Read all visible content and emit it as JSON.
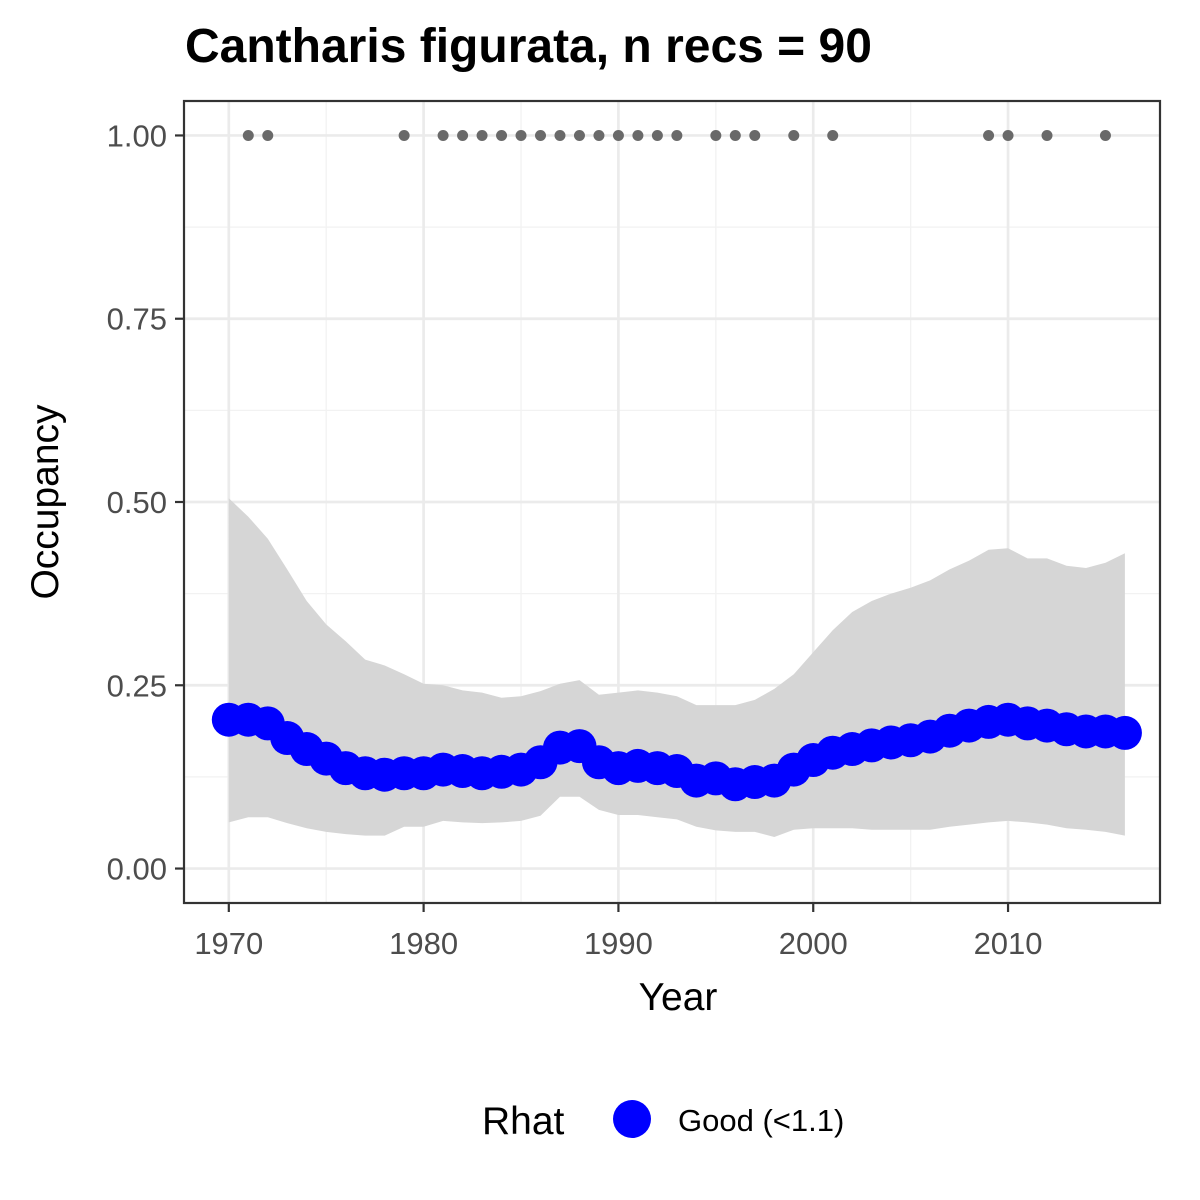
{
  "chart_data": {
    "type": "line",
    "title": "Cantharis figurata, n recs = 90",
    "xlabel": "Year",
    "ylabel": "Occupancy",
    "xlim": [
      1967.7,
      2017.8
    ],
    "ylim": [
      -0.047,
      1.047
    ],
    "x_ticks": [
      1970,
      1980,
      1990,
      2000,
      2010
    ],
    "x_tick_labels": [
      "1970",
      "1980",
      "1990",
      "2000",
      "2010"
    ],
    "y_ticks": [
      0,
      0.25,
      0.5,
      0.75,
      1
    ],
    "y_tick_labels": [
      "0.00",
      "0.25",
      "0.50",
      "0.75",
      "1.00"
    ],
    "grid": true,
    "legend": {
      "position": "bottom",
      "title": "Rhat",
      "entries": [
        {
          "label": "Good (<1.1)",
          "color": "#0000ff"
        }
      ]
    },
    "series": [
      {
        "name": "Good (<1.1)",
        "color": "#0000ff",
        "x": [
          1970,
          1971,
          1972,
          1973,
          1974,
          1975,
          1976,
          1977,
          1978,
          1979,
          1980,
          1981,
          1982,
          1983,
          1984,
          1985,
          1986,
          1987,
          1988,
          1989,
          1990,
          1991,
          1992,
          1993,
          1994,
          1995,
          1996,
          1997,
          1998,
          1999,
          2000,
          2001,
          2002,
          2003,
          2004,
          2005,
          2006,
          2007,
          2008,
          2009,
          2010,
          2011,
          2012,
          2013,
          2014,
          2015,
          2016
        ],
        "y": [
          0.203,
          0.203,
          0.198,
          0.178,
          0.163,
          0.15,
          0.137,
          0.13,
          0.128,
          0.13,
          0.13,
          0.135,
          0.133,
          0.13,
          0.132,
          0.135,
          0.145,
          0.165,
          0.167,
          0.145,
          0.137,
          0.14,
          0.137,
          0.133,
          0.12,
          0.123,
          0.115,
          0.118,
          0.12,
          0.135,
          0.148,
          0.158,
          0.163,
          0.168,
          0.172,
          0.175,
          0.18,
          0.188,
          0.195,
          0.2,
          0.203,
          0.198,
          0.195,
          0.19,
          0.187,
          0.187,
          0.185
        ]
      }
    ],
    "credible_interval": {
      "color": "#d6d6d6",
      "x": [
        1970,
        1971,
        1972,
        1973,
        1974,
        1975,
        1976,
        1977,
        1978,
        1979,
        1980,
        1981,
        1982,
        1983,
        1984,
        1985,
        1986,
        1987,
        1988,
        1989,
        1990,
        1991,
        1992,
        1993,
        1994,
        1995,
        1996,
        1997,
        1998,
        1999,
        2000,
        2001,
        2002,
        2003,
        2004,
        2005,
        2006,
        2007,
        2008,
        2009,
        2010,
        2011,
        2012,
        2013,
        2014,
        2015,
        2016
      ],
      "lower": [
        0.063,
        0.07,
        0.07,
        0.062,
        0.055,
        0.05,
        0.047,
        0.045,
        0.045,
        0.057,
        0.057,
        0.065,
        0.063,
        0.062,
        0.063,
        0.065,
        0.072,
        0.098,
        0.098,
        0.08,
        0.073,
        0.073,
        0.07,
        0.067,
        0.057,
        0.052,
        0.05,
        0.05,
        0.043,
        0.053,
        0.055,
        0.055,
        0.055,
        0.053,
        0.053,
        0.053,
        0.053,
        0.057,
        0.06,
        0.063,
        0.065,
        0.063,
        0.06,
        0.055,
        0.053,
        0.05,
        0.045
      ],
      "upper": [
        0.505,
        0.48,
        0.45,
        0.408,
        0.365,
        0.333,
        0.31,
        0.285,
        0.277,
        0.265,
        0.252,
        0.25,
        0.243,
        0.24,
        0.233,
        0.235,
        0.242,
        0.252,
        0.257,
        0.237,
        0.24,
        0.243,
        0.24,
        0.235,
        0.223,
        0.223,
        0.223,
        0.23,
        0.245,
        0.265,
        0.295,
        0.325,
        0.35,
        0.365,
        0.375,
        0.383,
        0.393,
        0.408,
        0.42,
        0.435,
        0.437,
        0.423,
        0.423,
        0.413,
        0.41,
        0.417,
        0.43
      ]
    },
    "records": {
      "color": "#696969",
      "x": [
        1971,
        1972,
        1979,
        1981,
        1982,
        1983,
        1984,
        1985,
        1986,
        1987,
        1988,
        1989,
        1990,
        1991,
        1992,
        1993,
        1995,
        1996,
        1997,
        1999,
        2001,
        2009,
        2010,
        2012,
        2015
      ],
      "y": [
        1,
        1,
        1,
        1,
        1,
        1,
        1,
        1,
        1,
        1,
        1,
        1,
        1,
        1,
        1,
        1,
        1,
        1,
        1,
        1,
        1,
        1,
        1,
        1,
        1
      ]
    }
  }
}
